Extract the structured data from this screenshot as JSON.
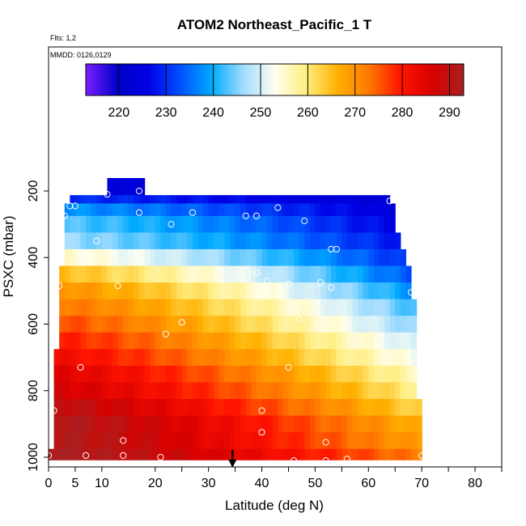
{
  "chart_data": {
    "type": "heatmap",
    "title": "ATOM2 Northeast_Pacific_1 T",
    "flights_note": "Flts: 1,2",
    "dates_note": "MMDD: 0126,0129",
    "xlabel": "Latitude (deg N)",
    "ylabel": "PSXC (mbar)",
    "xlim": [
      0,
      85
    ],
    "ylim": [
      1010,
      0
    ],
    "x_ticks": [
      0,
      5,
      10,
      20,
      30,
      40,
      50,
      60,
      70,
      80
    ],
    "y_ticks": [
      200,
      400,
      600,
      800,
      1000
    ],
    "colorbar": {
      "range": [
        213,
        293
      ],
      "ticks": [
        220,
        230,
        240,
        250,
        260,
        270,
        280,
        290
      ],
      "colors": [
        "#7a1fff",
        "#0000c8",
        "#0000e6",
        "#0050ff",
        "#00aaff",
        "#a0dcff",
        "#fffff0",
        "#ffee80",
        "#ffb000",
        "#ff7800",
        "#ff1400",
        "#d80000",
        "#a82020"
      ]
    },
    "pressure_rows": [
      {
        "p": 200,
        "x0": 11,
        "x1": 18,
        "t0": 224,
        "t1": 222
      },
      {
        "p": 225,
        "x0": 4,
        "x1": 64,
        "t0": 230,
        "t1": 222
      },
      {
        "p": 250,
        "x0": 3,
        "x1": 65,
        "t0": 238,
        "t1": 224
      },
      {
        "p": 300,
        "x0": 3,
        "x1": 65,
        "t0": 243,
        "t1": 226
      },
      {
        "p": 350,
        "x0": 3,
        "x1": 66,
        "t0": 246,
        "t1": 228
      },
      {
        "p": 400,
        "x0": 3,
        "x1": 67,
        "t0": 255,
        "t1": 230
      },
      {
        "p": 450,
        "x0": 2,
        "x1": 68,
        "t0": 265,
        "t1": 233
      },
      {
        "p": 500,
        "x0": 2,
        "x1": 68,
        "t0": 270,
        "t1": 238
      },
      {
        "p": 550,
        "x0": 2,
        "x1": 69,
        "t0": 273,
        "t1": 242
      },
      {
        "p": 600,
        "x0": 2,
        "x1": 69,
        "t0": 276,
        "t1": 245
      },
      {
        "p": 650,
        "x0": 2,
        "x1": 69,
        "t0": 279,
        "t1": 249
      },
      {
        "p": 700,
        "x0": 1,
        "x1": 69,
        "t0": 282,
        "t1": 252
      },
      {
        "p": 750,
        "x0": 1,
        "x1": 69,
        "t0": 285,
        "t1": 256
      },
      {
        "p": 800,
        "x0": 1,
        "x1": 69,
        "t0": 287,
        "t1": 259
      },
      {
        "p": 850,
        "x0": 1,
        "x1": 70,
        "t0": 290,
        "t1": 262
      },
      {
        "p": 900,
        "x0": 1,
        "x1": 70,
        "t0": 292,
        "t1": 266
      },
      {
        "p": 950,
        "x0": 1,
        "x1": 70,
        "t0": 292,
        "t1": 268
      },
      {
        "p": 1000,
        "x0": 0,
        "x1": 70,
        "t0": 293,
        "t1": 272
      }
    ],
    "sample_points": [
      {
        "lat": 11,
        "p": 210
      },
      {
        "lat": 17,
        "p": 200
      },
      {
        "lat": 4,
        "p": 245
      },
      {
        "lat": 5,
        "p": 245
      },
      {
        "lat": 3,
        "p": 275
      },
      {
        "lat": 17,
        "p": 265
      },
      {
        "lat": 23,
        "p": 300
      },
      {
        "lat": 27,
        "p": 265
      },
      {
        "lat": 37,
        "p": 275
      },
      {
        "lat": 39,
        "p": 275
      },
      {
        "lat": 43,
        "p": 250
      },
      {
        "lat": 48,
        "p": 290
      },
      {
        "lat": 64,
        "p": 230
      },
      {
        "lat": 9,
        "p": 350
      },
      {
        "lat": 53,
        "p": 375
      },
      {
        "lat": 54,
        "p": 375
      },
      {
        "lat": 39,
        "p": 445
      },
      {
        "lat": 41,
        "p": 470
      },
      {
        "lat": 2,
        "p": 485
      },
      {
        "lat": 13,
        "p": 485
      },
      {
        "lat": 45,
        "p": 480
      },
      {
        "lat": 51,
        "p": 475
      },
      {
        "lat": 53,
        "p": 490
      },
      {
        "lat": 68,
        "p": 505
      },
      {
        "lat": 1,
        "p": 575
      },
      {
        "lat": 47,
        "p": 585
      },
      {
        "lat": 25,
        "p": 595
      },
      {
        "lat": 22,
        "p": 630
      },
      {
        "lat": 6,
        "p": 730
      },
      {
        "lat": 45,
        "p": 730
      },
      {
        "lat": 1,
        "p": 860
      },
      {
        "lat": 40,
        "p": 860
      },
      {
        "lat": 40,
        "p": 925
      },
      {
        "lat": 14,
        "p": 950
      },
      {
        "lat": 52,
        "p": 955
      },
      {
        "lat": 0,
        "p": 995
      },
      {
        "lat": 7,
        "p": 995
      },
      {
        "lat": 14,
        "p": 995
      },
      {
        "lat": 21,
        "p": 1000
      },
      {
        "lat": 46,
        "p": 1010
      },
      {
        "lat": 52,
        "p": 1010
      },
      {
        "lat": 56,
        "p": 1005
      },
      {
        "lat": 70,
        "p": 995
      }
    ],
    "marker_lat": 34.5
  }
}
